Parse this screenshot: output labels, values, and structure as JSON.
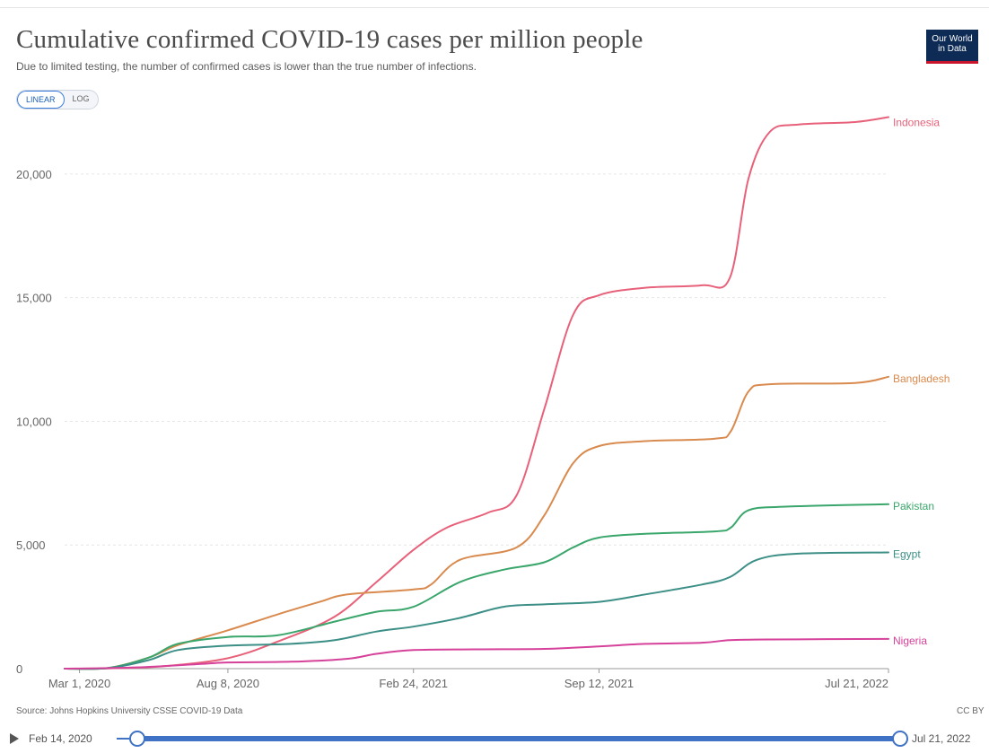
{
  "header": {
    "title": "Cumulative confirmed COVID-19 cases per million people",
    "subtitle": "Due to limited testing, the number of confirmed cases is lower than the true number of infections.",
    "logo_line1": "Our World",
    "logo_line2": "in Data"
  },
  "scale_toggle": {
    "linear_label": "LINEAR",
    "log_label": "LOG",
    "selected": "LINEAR"
  },
  "footer": {
    "source": "Source: Johns Hopkins University CSSE COVID-19 Data",
    "license": "CC BY"
  },
  "timeline": {
    "start_label": "Feb 14, 2020",
    "end_label": "Jul 21, 2022"
  },
  "colors": {
    "Indonesia": "#e8617a",
    "Bangladesh": "#d98a4e",
    "Pakistan": "#3aa66b",
    "Egypt": "#3c8f86",
    "Nigeria": "#d6419a",
    "grid": "#e6e6e6",
    "axis": "#999999"
  },
  "chart_data": {
    "type": "line",
    "title": "Cumulative confirmed COVID-19 cases per million people",
    "xlabel": "",
    "ylabel": "",
    "x_range": [
      "2020-02-14",
      "2022-07-21"
    ],
    "ylim": [
      0,
      22500
    ],
    "grid": true,
    "y_ticks": [
      0,
      5000,
      10000,
      15000,
      20000
    ],
    "y_tick_labels": [
      "0",
      "5,000",
      "10,000",
      "15,000",
      "20,000"
    ],
    "x_ticks": [
      "2020-03-01",
      "2020-08-08",
      "2021-02-24",
      "2021-09-12",
      "2022-07-21"
    ],
    "x_tick_labels": [
      "Mar 1, 2020",
      "Aug 8, 2020",
      "Feb 24, 2021",
      "Sep 12, 2021",
      "Jul 21, 2022"
    ],
    "legend": "inline-right",
    "series": [
      {
        "name": "Indonesia",
        "points": [
          [
            "2020-02-14",
            0
          ],
          [
            "2020-04-01",
            10
          ],
          [
            "2020-06-01",
            100
          ],
          [
            "2020-08-08",
            420
          ],
          [
            "2020-10-01",
            1100
          ],
          [
            "2020-12-01",
            2100
          ],
          [
            "2021-01-15",
            3500
          ],
          [
            "2021-02-24",
            4800
          ],
          [
            "2021-04-01",
            5700
          ],
          [
            "2021-05-15",
            6300
          ],
          [
            "2021-06-15",
            7000
          ],
          [
            "2021-07-15",
            10500
          ],
          [
            "2021-08-15",
            14300
          ],
          [
            "2021-09-12",
            15100
          ],
          [
            "2021-11-01",
            15400
          ],
          [
            "2022-01-01",
            15500
          ],
          [
            "2022-01-31",
            15800
          ],
          [
            "2022-02-20",
            19800
          ],
          [
            "2022-03-15",
            21700
          ],
          [
            "2022-04-15",
            22000
          ],
          [
            "2022-06-15",
            22100
          ],
          [
            "2022-07-21",
            22300
          ]
        ]
      },
      {
        "name": "Bangladesh",
        "points": [
          [
            "2020-02-14",
            0
          ],
          [
            "2020-04-01",
            30
          ],
          [
            "2020-05-15",
            450
          ],
          [
            "2020-06-15",
            950
          ],
          [
            "2020-08-08",
            1550
          ],
          [
            "2020-10-01",
            2200
          ],
          [
            "2020-11-15",
            2700
          ],
          [
            "2020-12-15",
            3000
          ],
          [
            "2021-02-24",
            3200
          ],
          [
            "2021-03-15",
            3400
          ],
          [
            "2021-04-15",
            4400
          ],
          [
            "2021-06-15",
            4900
          ],
          [
            "2021-07-15",
            6200
          ],
          [
            "2021-08-15",
            8300
          ],
          [
            "2021-09-12",
            9000
          ],
          [
            "2021-11-01",
            9200
          ],
          [
            "2022-01-15",
            9300
          ],
          [
            "2022-02-01",
            9600
          ],
          [
            "2022-02-20",
            11200
          ],
          [
            "2022-03-15",
            11500
          ],
          [
            "2022-06-15",
            11550
          ],
          [
            "2022-07-21",
            11800
          ]
        ]
      },
      {
        "name": "Pakistan",
        "points": [
          [
            "2020-02-14",
            0
          ],
          [
            "2020-04-01",
            30
          ],
          [
            "2020-05-15",
            450
          ],
          [
            "2020-06-15",
            1000
          ],
          [
            "2020-08-08",
            1280
          ],
          [
            "2020-10-01",
            1350
          ],
          [
            "2020-12-01",
            1900
          ],
          [
            "2021-01-15",
            2300
          ],
          [
            "2021-02-24",
            2500
          ],
          [
            "2021-04-15",
            3500
          ],
          [
            "2021-06-01",
            4000
          ],
          [
            "2021-07-15",
            4300
          ],
          [
            "2021-08-15",
            4900
          ],
          [
            "2021-09-12",
            5300
          ],
          [
            "2021-11-01",
            5450
          ],
          [
            "2022-01-15",
            5550
          ],
          [
            "2022-02-01",
            5700
          ],
          [
            "2022-02-20",
            6400
          ],
          [
            "2022-04-01",
            6550
          ],
          [
            "2022-07-21",
            6650
          ]
        ]
      },
      {
        "name": "Egypt",
        "points": [
          [
            "2020-02-14",
            0
          ],
          [
            "2020-04-01",
            20
          ],
          [
            "2020-05-15",
            350
          ],
          [
            "2020-06-15",
            750
          ],
          [
            "2020-08-08",
            930
          ],
          [
            "2020-10-15",
            1000
          ],
          [
            "2020-12-01",
            1150
          ],
          [
            "2021-01-15",
            1500
          ],
          [
            "2021-02-24",
            1700
          ],
          [
            "2021-04-15",
            2050
          ],
          [
            "2021-06-01",
            2500
          ],
          [
            "2021-07-15",
            2600
          ],
          [
            "2021-09-12",
            2700
          ],
          [
            "2021-11-01",
            3000
          ],
          [
            "2022-01-01",
            3400
          ],
          [
            "2022-01-31",
            3700
          ],
          [
            "2022-03-01",
            4400
          ],
          [
            "2022-04-15",
            4650
          ],
          [
            "2022-07-21",
            4700
          ]
        ]
      },
      {
        "name": "Nigeria",
        "points": [
          [
            "2020-02-14",
            0
          ],
          [
            "2020-05-01",
            50
          ],
          [
            "2020-07-15",
            200
          ],
          [
            "2020-08-08",
            250
          ],
          [
            "2020-10-15",
            280
          ],
          [
            "2020-12-15",
            400
          ],
          [
            "2021-01-15",
            600
          ],
          [
            "2021-02-24",
            750
          ],
          [
            "2021-05-01",
            780
          ],
          [
            "2021-07-15",
            800
          ],
          [
            "2021-09-12",
            900
          ],
          [
            "2021-11-01",
            1000
          ],
          [
            "2022-01-01",
            1050
          ],
          [
            "2022-01-31",
            1150
          ],
          [
            "2022-03-15",
            1180
          ],
          [
            "2022-07-21",
            1200
          ]
        ]
      }
    ]
  }
}
